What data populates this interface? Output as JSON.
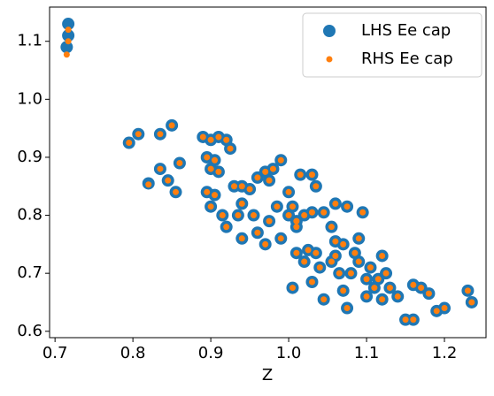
{
  "chart_data": {
    "type": "scatter",
    "xlabel": "Z",
    "x": [
      0.717,
      0.717,
      0.715,
      0.795,
      0.807,
      0.835,
      0.85,
      0.82,
      0.835,
      0.845,
      0.855,
      0.86,
      0.89,
      0.9,
      0.91,
      0.92,
      0.925,
      0.895,
      0.9,
      0.905,
      0.91,
      0.895,
      0.905,
      0.9,
      0.915,
      0.92,
      0.93,
      0.94,
      0.95,
      0.94,
      0.935,
      0.94,
      0.955,
      0.96,
      0.97,
      0.975,
      0.98,
      0.99,
      0.96,
      0.97,
      0.975,
      0.985,
      0.99,
      1.0,
      1.005,
      1.0,
      1.01,
      1.015,
      1.03,
      1.035,
      1.01,
      1.02,
      1.03,
      1.045,
      1.06,
      1.075,
      1.095,
      1.055,
      1.06,
      1.07,
      1.09,
      1.01,
      1.02,
      1.025,
      1.035,
      1.04,
      1.03,
      1.045,
      1.055,
      1.065,
      1.07,
      1.075,
      1.08,
      1.09,
      1.1,
      1.1,
      1.105,
      1.11,
      1.115,
      1.12,
      1.125,
      1.13,
      1.14,
      1.15,
      1.16,
      1.16,
      1.17,
      1.18,
      1.19,
      1.2,
      1.23,
      1.235,
      1.005,
      1.085,
      1.06,
      1.12
    ],
    "series": [
      {
        "name": "LHS Ee cap",
        "color": "#1f77b4",
        "values": [
          1.13,
          1.11,
          1.09,
          0.925,
          0.94,
          0.94,
          0.955,
          0.855,
          0.88,
          0.86,
          0.84,
          0.89,
          0.935,
          0.93,
          0.935,
          0.93,
          0.915,
          0.9,
          0.88,
          0.895,
          0.875,
          0.84,
          0.835,
          0.815,
          0.8,
          0.78,
          0.85,
          0.85,
          0.845,
          0.82,
          0.8,
          0.76,
          0.8,
          0.865,
          0.875,
          0.86,
          0.88,
          0.895,
          0.77,
          0.75,
          0.79,
          0.815,
          0.76,
          0.84,
          0.815,
          0.8,
          0.79,
          0.87,
          0.87,
          0.85,
          0.78,
          0.8,
          0.805,
          0.805,
          0.82,
          0.815,
          0.805,
          0.78,
          0.755,
          0.75,
          0.76,
          0.735,
          0.72,
          0.74,
          0.735,
          0.71,
          0.685,
          0.655,
          0.72,
          0.7,
          0.67,
          0.64,
          0.7,
          0.72,
          0.69,
          0.66,
          0.71,
          0.675,
          0.69,
          0.73,
          0.7,
          0.675,
          0.66,
          0.62,
          0.62,
          0.68,
          0.675,
          0.665,
          0.635,
          0.64,
          0.67,
          0.65,
          0.675,
          0.735,
          0.73,
          0.655
        ]
      },
      {
        "name": "RHS Ee cap",
        "color": "#ff7f0e",
        "values": [
          1.12,
          1.1,
          1.077,
          0.925,
          0.94,
          0.94,
          0.955,
          0.853,
          0.88,
          0.86,
          0.84,
          0.89,
          0.935,
          0.93,
          0.935,
          0.93,
          0.915,
          0.9,
          0.88,
          0.895,
          0.875,
          0.84,
          0.835,
          0.815,
          0.8,
          0.78,
          0.85,
          0.85,
          0.845,
          0.82,
          0.8,
          0.76,
          0.8,
          0.865,
          0.875,
          0.86,
          0.88,
          0.895,
          0.77,
          0.75,
          0.79,
          0.815,
          0.76,
          0.84,
          0.815,
          0.8,
          0.79,
          0.87,
          0.87,
          0.85,
          0.78,
          0.8,
          0.805,
          0.805,
          0.82,
          0.815,
          0.805,
          0.78,
          0.755,
          0.75,
          0.76,
          0.735,
          0.72,
          0.74,
          0.735,
          0.71,
          0.685,
          0.655,
          0.72,
          0.7,
          0.67,
          0.64,
          0.7,
          0.72,
          0.69,
          0.66,
          0.71,
          0.675,
          0.69,
          0.73,
          0.7,
          0.675,
          0.66,
          0.62,
          0.62,
          0.68,
          0.675,
          0.665,
          0.635,
          0.64,
          0.67,
          0.65,
          0.675,
          0.735,
          0.73,
          0.655
        ]
      }
    ],
    "xlim": [
      0.693,
      1.2534
    ],
    "ylim": [
      0.589,
      1.159
    ],
    "xticks": [
      0.7,
      0.8,
      0.9,
      {
        "value": 1,
        "label": "1.0"
      },
      1.1,
      1.2
    ],
    "yticks": [
      0.6,
      0.7,
      0.8,
      0.9,
      {
        "value": 1,
        "label": "1.0"
      },
      1.1
    ],
    "legend": "upper right"
  }
}
